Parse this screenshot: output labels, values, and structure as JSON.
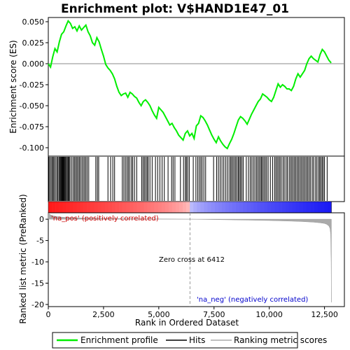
{
  "chart_data": {
    "type": "line",
    "title": "Enrichment plot: V$HAND1E47_01",
    "top_panel": {
      "ylabel": "Enrichment score (ES)",
      "ylim": [
        -0.11,
        0.055
      ],
      "yticks": [
        0.05,
        0.025,
        0.0,
        -0.025,
        -0.05,
        -0.075,
        -0.1
      ],
      "ytick_labels": [
        "0.050",
        "0.025",
        "0.000",
        "-0.025",
        "-0.050",
        "-0.075",
        "-0.100"
      ],
      "series": [
        {
          "name": "Enrichment profile",
          "color": "#00ee00",
          "x": [
            0,
            100,
            200,
            300,
            400,
            500,
            600,
            700,
            800,
            900,
            1000,
            1100,
            1200,
            1300,
            1400,
            1500,
            1600,
            1700,
            1800,
            1900,
            2000,
            2100,
            2200,
            2300,
            2400,
            2500,
            2600,
            2700,
            2800,
            2900,
            3000,
            3100,
            3200,
            3300,
            3400,
            3500,
            3600,
            3700,
            3800,
            3900,
            4000,
            4100,
            4200,
            4300,
            4400,
            4500,
            4600,
            4700,
            4800,
            4900,
            5000,
            5100,
            5200,
            5300,
            5400,
            5500,
            5600,
            5700,
            5800,
            5900,
            6000,
            6100,
            6200,
            6300,
            6400,
            6500,
            6600,
            6700,
            6800,
            6900,
            7000,
            7100,
            7200,
            7300,
            7400,
            7500,
            7600,
            7700,
            7800,
            7900,
            8000,
            8100,
            8200,
            8300,
            8400,
            8500,
            8600,
            8700,
            8800,
            8900,
            9000,
            9100,
            9200,
            9300,
            9400,
            9500,
            9600,
            9700,
            9800,
            9900,
            10000,
            10100,
            10200,
            10300,
            10400,
            10500,
            10600,
            10700,
            10800,
            10900,
            11000,
            11100,
            11200,
            11300,
            11400,
            11500,
            11600,
            11700,
            11800,
            11900,
            12000,
            12100,
            12200,
            12300,
            12400,
            12500,
            12600,
            12700,
            12800
          ],
          "y": [
            0.0,
            -0.004,
            0.008,
            0.018,
            0.014,
            0.026,
            0.035,
            0.038,
            0.045,
            0.051,
            0.048,
            0.042,
            0.044,
            0.039,
            0.045,
            0.04,
            0.043,
            0.046,
            0.038,
            0.033,
            0.025,
            0.022,
            0.031,
            0.026,
            0.017,
            0.009,
            -0.001,
            -0.005,
            -0.008,
            -0.012,
            -0.018,
            -0.027,
            -0.034,
            -0.038,
            -0.036,
            -0.035,
            -0.04,
            -0.034,
            -0.036,
            -0.039,
            -0.041,
            -0.046,
            -0.05,
            -0.045,
            -0.043,
            -0.046,
            -0.05,
            -0.056,
            -0.061,
            -0.065,
            -0.052,
            -0.055,
            -0.058,
            -0.063,
            -0.068,
            -0.073,
            -0.071,
            -0.076,
            -0.08,
            -0.085,
            -0.088,
            -0.091,
            -0.083,
            -0.08,
            -0.086,
            -0.083,
            -0.089,
            -0.074,
            -0.071,
            -0.062,
            -0.064,
            -0.068,
            -0.073,
            -0.079,
            -0.085,
            -0.09,
            -0.094,
            -0.087,
            -0.092,
            -0.096,
            -0.099,
            -0.101,
            -0.095,
            -0.09,
            -0.083,
            -0.075,
            -0.067,
            -0.063,
            -0.065,
            -0.068,
            -0.072,
            -0.066,
            -0.06,
            -0.055,
            -0.05,
            -0.045,
            -0.042,
            -0.036,
            -0.038,
            -0.04,
            -0.043,
            -0.045,
            -0.04,
            -0.032,
            -0.024,
            -0.028,
            -0.025,
            -0.027,
            -0.03,
            -0.03,
            -0.032,
            -0.027,
            -0.018,
            -0.012,
            -0.016,
            -0.012,
            -0.008,
            0.0,
            0.006,
            0.009,
            0.006,
            0.004,
            0.002,
            0.011,
            0.017,
            0.014,
            0.009,
            0.004,
            0.001
          ]
        }
      ]
    },
    "hits": {
      "name": "Hits",
      "color": "#000000",
      "x": [
        20,
        60,
        120,
        170,
        220,
        260,
        320,
        380,
        430,
        480,
        520,
        560,
        590,
        620,
        650,
        680,
        710,
        740,
        780,
        820,
        860,
        900,
        940,
        980,
        1050,
        1120,
        1180,
        1230,
        1290,
        1340,
        1400,
        1450,
        1520,
        1580,
        1640,
        1700,
        1760,
        1830,
        2150,
        2220,
        2280,
        2700,
        2820,
        2920,
        3000,
        3350,
        3420,
        3490,
        3560,
        3620,
        3680,
        3760,
        3820,
        3900,
        4000,
        4230,
        4290,
        4350,
        4410,
        4470,
        4520,
        4600,
        4700,
        4850,
        4950,
        5050,
        5150,
        5250,
        5420,
        5580,
        5650,
        5730,
        5980,
        6120,
        6200,
        6250,
        6310,
        6380,
        6560,
        6680,
        6760,
        6830,
        6900,
        6960,
        7040,
        7120,
        7480,
        7620,
        7700,
        7780,
        7860,
        7940,
        8020,
        8100,
        8180,
        8250,
        8300,
        8360,
        8420,
        8480,
        8540,
        8600,
        8650,
        8700,
        8760,
        8820,
        8960,
        9060,
        9140,
        9210,
        9280,
        9350,
        9420,
        9480,
        9540,
        9600,
        9650,
        9700,
        9760,
        9820,
        9880,
        9950,
        10050,
        10150,
        10240,
        10300,
        10360,
        10420,
        10480,
        10540,
        10620,
        10680,
        10760,
        10820,
        10900,
        10960,
        11020,
        11080,
        11140,
        11200,
        11260,
        11320,
        11380,
        11440,
        11500,
        11560,
        11620,
        11680,
        11740,
        11800,
        11860,
        11940,
        12000,
        12080,
        12150,
        12220,
        12280,
        12330,
        12390,
        12440,
        12500,
        12620
      ]
    },
    "bottom_panel": {
      "ylabel": "Ranked list metric (PreRanked)",
      "xlabel": "Rank in Ordered Dataset",
      "xlim": [
        0,
        13400
      ],
      "xticks": [
        0,
        2500,
        5000,
        7500,
        10000,
        12500
      ],
      "xtick_labels": [
        "0",
        "2,500",
        "5,000",
        "7,500",
        "10,000",
        "12,500"
      ],
      "ylim": [
        -20.5,
        1.5
      ],
      "yticks": [
        0,
        -5,
        -10,
        -15,
        -20
      ],
      "ytick_labels": [
        "0",
        "-5",
        "-10",
        "-15",
        "-20"
      ],
      "metric": {
        "name": "Ranking metric scores",
        "color": "#aaaaaa",
        "x": [
          0,
          50,
          100,
          200,
          400,
          700,
          1000,
          1500,
          2000,
          3000,
          4000,
          5000,
          6000,
          6412,
          7000,
          8000,
          9000,
          10000,
          11000,
          11500,
          12000,
          12300,
          12500,
          12600,
          12700,
          12750,
          12780,
          12800,
          12810
        ],
        "y": [
          1.5,
          1.2,
          1.0,
          0.8,
          0.6,
          0.45,
          0.35,
          0.28,
          0.22,
          0.15,
          0.1,
          0.06,
          0.02,
          0.0,
          -0.05,
          -0.12,
          -0.2,
          -0.3,
          -0.45,
          -0.55,
          -0.7,
          -0.85,
          -1.0,
          -1.2,
          -1.6,
          -2.2,
          -3.5,
          -10.0,
          -19.5
        ]
      },
      "pos_label": "'na_pos' (positively correlated)",
      "neg_label": "'na_neg' (negatively correlated)",
      "zero_cross_label": "Zero cross at 6412",
      "zero_cross": 6412,
      "pos_color": "#cc0000",
      "neg_color": "#0000cc"
    },
    "legend": {
      "placement": "bottom",
      "entries": [
        {
          "label": "Enrichment profile",
          "color": "#00ee00"
        },
        {
          "label": "Hits",
          "color": "#000000"
        },
        {
          "label": "Ranking metric scores",
          "color": "#aaaaaa"
        }
      ]
    }
  }
}
